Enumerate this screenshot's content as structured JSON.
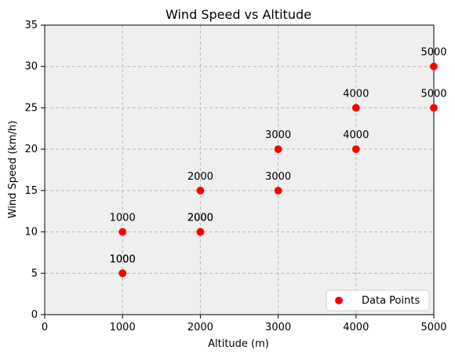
{
  "chart_data": {
    "type": "scatter",
    "title": "Wind Speed vs Altitude",
    "xlabel": "Altitude (m)",
    "ylabel": "Wind Speed (km/h)",
    "xlim": [
      0,
      5000
    ],
    "ylim": [
      0,
      35
    ],
    "xticks": [
      0,
      1000,
      2000,
      3000,
      4000,
      5000
    ],
    "yticks": [
      0,
      5,
      10,
      15,
      20,
      25,
      30,
      35
    ],
    "xtick_labels": [
      "0",
      "1000",
      "2000",
      "3000",
      "4000",
      "5000"
    ],
    "ytick_labels": [
      "0",
      "5",
      "10",
      "15",
      "20",
      "25",
      "30",
      "35"
    ],
    "grid": true,
    "legend_position": "bottom-right",
    "series": [
      {
        "name": "Data Points",
        "color": "#ff0000",
        "points": [
          {
            "x": 1000,
            "y": 5,
            "label": "1000"
          },
          {
            "x": 1000,
            "y": 5,
            "label": "1000"
          },
          {
            "x": 1000,
            "y": 10,
            "label": "1000"
          },
          {
            "x": 2000,
            "y": 10,
            "label": "2000"
          },
          {
            "x": 2000,
            "y": 10,
            "label": "2000"
          },
          {
            "x": 2000,
            "y": 15,
            "label": "2000"
          },
          {
            "x": 3000,
            "y": 15,
            "label": "3000"
          },
          {
            "x": 3000,
            "y": 20,
            "label": "3000"
          },
          {
            "x": 4000,
            "y": 20,
            "label": "4000"
          },
          {
            "x": 4000,
            "y": 25,
            "label": "4000"
          },
          {
            "x": 5000,
            "y": 25,
            "label": "5000"
          },
          {
            "x": 5000,
            "y": 30,
            "label": "5000"
          }
        ]
      }
    ]
  }
}
